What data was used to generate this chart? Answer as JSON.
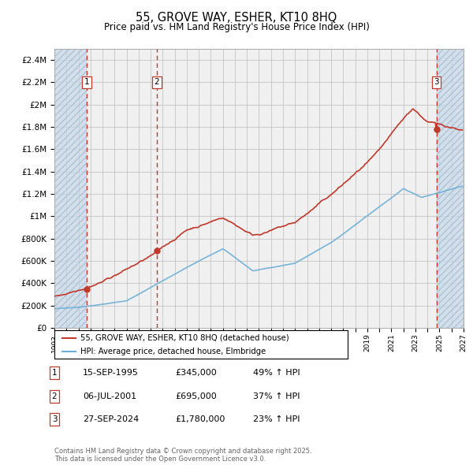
{
  "title1": "55, GROVE WAY, ESHER, KT10 8HQ",
  "title2": "Price paid vs. HM Land Registry's House Price Index (HPI)",
  "ylabel_ticks": [
    "£0",
    "£200K",
    "£400K",
    "£600K",
    "£800K",
    "£1M",
    "£1.2M",
    "£1.4M",
    "£1.6M",
    "£1.8M",
    "£2M",
    "£2.2M",
    "£2.4M"
  ],
  "ytick_values": [
    0,
    200000,
    400000,
    600000,
    800000,
    1000000,
    1200000,
    1400000,
    1600000,
    1800000,
    2000000,
    2200000,
    2400000
  ],
  "ylim": [
    0,
    2500000
  ],
  "xlim_start": 1993.0,
  "xlim_end": 2027.0,
  "sale_dates": [
    1995.71,
    2001.51,
    2024.74
  ],
  "sale_prices": [
    345000,
    695000,
    1780000
  ],
  "sale_labels": [
    "1",
    "2",
    "3"
  ],
  "sale_info": [
    {
      "label": "1",
      "date": "15-SEP-1995",
      "price": "£345,000",
      "hpi": "49% ↑ HPI"
    },
    {
      "label": "2",
      "date": "06-JUL-2001",
      "price": "£695,000",
      "hpi": "37% ↑ HPI"
    },
    {
      "label": "3",
      "date": "27-SEP-2024",
      "price": "£1,780,000",
      "hpi": "23% ↑ HPI"
    }
  ],
  "hpi_line_color": "#6baed6",
  "price_line_color": "#c0392b",
  "sale_marker_color": "#c0392b",
  "vline_color": "#c0392b",
  "grid_color": "#bbbbbb",
  "legend_label_price": "55, GROVE WAY, ESHER, KT10 8HQ (detached house)",
  "legend_label_hpi": "HPI: Average price, detached house, Elmbridge",
  "footer": "Contains HM Land Registry data © Crown copyright and database right 2025.\nThis data is licensed under the Open Government Licence v3.0.",
  "background_color": "#ffffff",
  "plot_bg_color": "#f0f0f0"
}
